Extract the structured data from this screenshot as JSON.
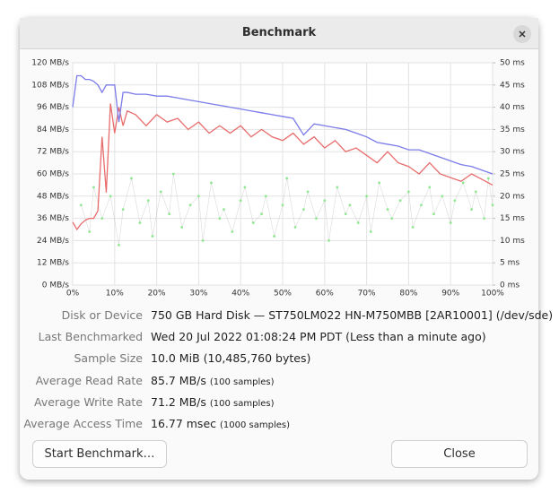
{
  "window": {
    "title": "Benchmark"
  },
  "chart_data": {
    "type": "line",
    "xlim": [
      0,
      100
    ],
    "xticks": [
      {
        "value": 0,
        "label": "0%"
      },
      {
        "value": 10,
        "label": "10%"
      },
      {
        "value": 20,
        "label": "20%"
      },
      {
        "value": 30,
        "label": "30%"
      },
      {
        "value": 40,
        "label": "40%"
      },
      {
        "value": 50,
        "label": "50%"
      },
      {
        "value": 60,
        "label": "60%"
      },
      {
        "value": 70,
        "label": "70%"
      },
      {
        "value": 80,
        "label": "80%"
      },
      {
        "value": 90,
        "label": "90%"
      },
      {
        "value": 100,
        "label": "100%"
      }
    ],
    "ylim": [
      0,
      120
    ],
    "yticks": [
      {
        "value": 0,
        "label": "0 MB/s"
      },
      {
        "value": 12,
        "label": "12 MB/s"
      },
      {
        "value": 24,
        "label": "24 MB/s"
      },
      {
        "value": 36,
        "label": "36 MB/s"
      },
      {
        "value": 48,
        "label": "48 MB/s"
      },
      {
        "value": 60,
        "label": "60 MB/s"
      },
      {
        "value": 72,
        "label": "72 MB/s"
      },
      {
        "value": 84,
        "label": "84 MB/s"
      },
      {
        "value": 96,
        "label": "96 MB/s"
      },
      {
        "value": 108,
        "label": "108 MB/s"
      },
      {
        "value": 120,
        "label": "120 MB/s"
      }
    ],
    "y2lim": [
      0,
      50
    ],
    "y2ticks": [
      {
        "value": 0,
        "label": "0 ms"
      },
      {
        "value": 5,
        "label": "5 ms"
      },
      {
        "value": 10,
        "label": "10 ms"
      },
      {
        "value": 15,
        "label": "15 ms"
      },
      {
        "value": 20,
        "label": "20 ms"
      },
      {
        "value": 25,
        "label": "25 ms"
      },
      {
        "value": 30,
        "label": "30 ms"
      },
      {
        "value": 35,
        "label": "35 ms"
      },
      {
        "value": 40,
        "label": "40 ms"
      },
      {
        "value": 45,
        "label": "45 ms"
      },
      {
        "value": 50,
        "label": "50 ms"
      }
    ],
    "grid": true,
    "x": [
      0,
      1,
      2,
      3,
      4,
      5,
      6,
      7,
      8,
      9,
      10,
      11,
      12,
      13,
      15,
      17.5,
      20,
      22.5,
      25,
      27.5,
      30,
      32.5,
      35,
      37.5,
      40,
      42.5,
      45,
      47.5,
      50,
      52.5,
      55,
      57.5,
      60,
      62.5,
      65,
      67.5,
      70,
      72.5,
      75,
      77.5,
      80,
      82.5,
      85,
      87.5,
      90,
      92.5,
      95,
      97.5,
      100
    ],
    "series": [
      {
        "type": "line",
        "color": "#7b7bea",
        "values": [
          96,
          113,
          113,
          111,
          111,
          110,
          108,
          104,
          108,
          108,
          108,
          88,
          104,
          104,
          103,
          103,
          102,
          102,
          101,
          100,
          99,
          98,
          97,
          96,
          95,
          94,
          93,
          92,
          91,
          90,
          81,
          87,
          86,
          85,
          84,
          82,
          80,
          77,
          76,
          75,
          73,
          73,
          71,
          69,
          67,
          65,
          64,
          62,
          60
        ]
      },
      {
        "type": "line",
        "color": "#e86c6c",
        "values": [
          34,
          30,
          33,
          35,
          36,
          36,
          40,
          80,
          50,
          98,
          82,
          96,
          86,
          94,
          92,
          86,
          92,
          88,
          90,
          84,
          88,
          82,
          86,
          82,
          86,
          80,
          84,
          80,
          78,
          82,
          76,
          80,
          74,
          78,
          72,
          74,
          70,
          66,
          72,
          66,
          64,
          60,
          66,
          60,
          58,
          56,
          60,
          57,
          54
        ]
      },
      {
        "type": "scatter",
        "axis": "y2",
        "color": "#8fe88f",
        "x": [
          2,
          4,
          5,
          7,
          9,
          11,
          12,
          14,
          16,
          18,
          19,
          21,
          23,
          24,
          26,
          28,
          30,
          31,
          33,
          35,
          36,
          38,
          40,
          41,
          43,
          45,
          46,
          48,
          50,
          51,
          53,
          55,
          56,
          58,
          60,
          61,
          63,
          65,
          66,
          68,
          70,
          71,
          73,
          75,
          76,
          78,
          80,
          81,
          83,
          85,
          86,
          88,
          90,
          91,
          93,
          95,
          96,
          98,
          99,
          100
        ],
        "values": [
          18,
          12,
          22,
          15,
          20,
          9,
          17,
          24,
          14,
          19,
          11,
          21,
          16,
          25,
          13,
          18,
          20,
          10,
          23,
          15,
          17,
          12,
          19,
          22,
          14,
          16,
          20,
          11,
          18,
          24,
          13,
          17,
          21,
          15,
          19,
          10,
          22,
          16,
          18,
          14,
          20,
          12,
          23,
          17,
          15,
          19,
          21,
          13,
          18,
          22,
          16,
          20,
          14,
          19,
          23,
          17,
          21,
          15,
          24,
          18
        ]
      }
    ]
  },
  "info": [
    {
      "label": "Disk or Device",
      "value": "750 GB Hard Disk — ST750LM022 HN-M750MBB [2AR10001] (/dev/sde)"
    },
    {
      "label": "Last Benchmarked",
      "value": "Wed 20 Jul 2022 01:08:24 PM PDT (Less than a minute ago)"
    },
    {
      "label": "Sample Size",
      "value": "10.0 MiB (10,485,760 bytes)"
    },
    {
      "label": "Average Read Rate",
      "value": "85.7 MB/s",
      "note": "(100 samples)"
    },
    {
      "label": "Average Write Rate",
      "value": "71.2 MB/s",
      "note": "(100 samples)"
    },
    {
      "label": "Average Access Time",
      "value": "16.77 msec",
      "note": "(1000 samples)"
    }
  ],
  "buttons": {
    "start": "Start Benchmark…",
    "close": "Close"
  }
}
